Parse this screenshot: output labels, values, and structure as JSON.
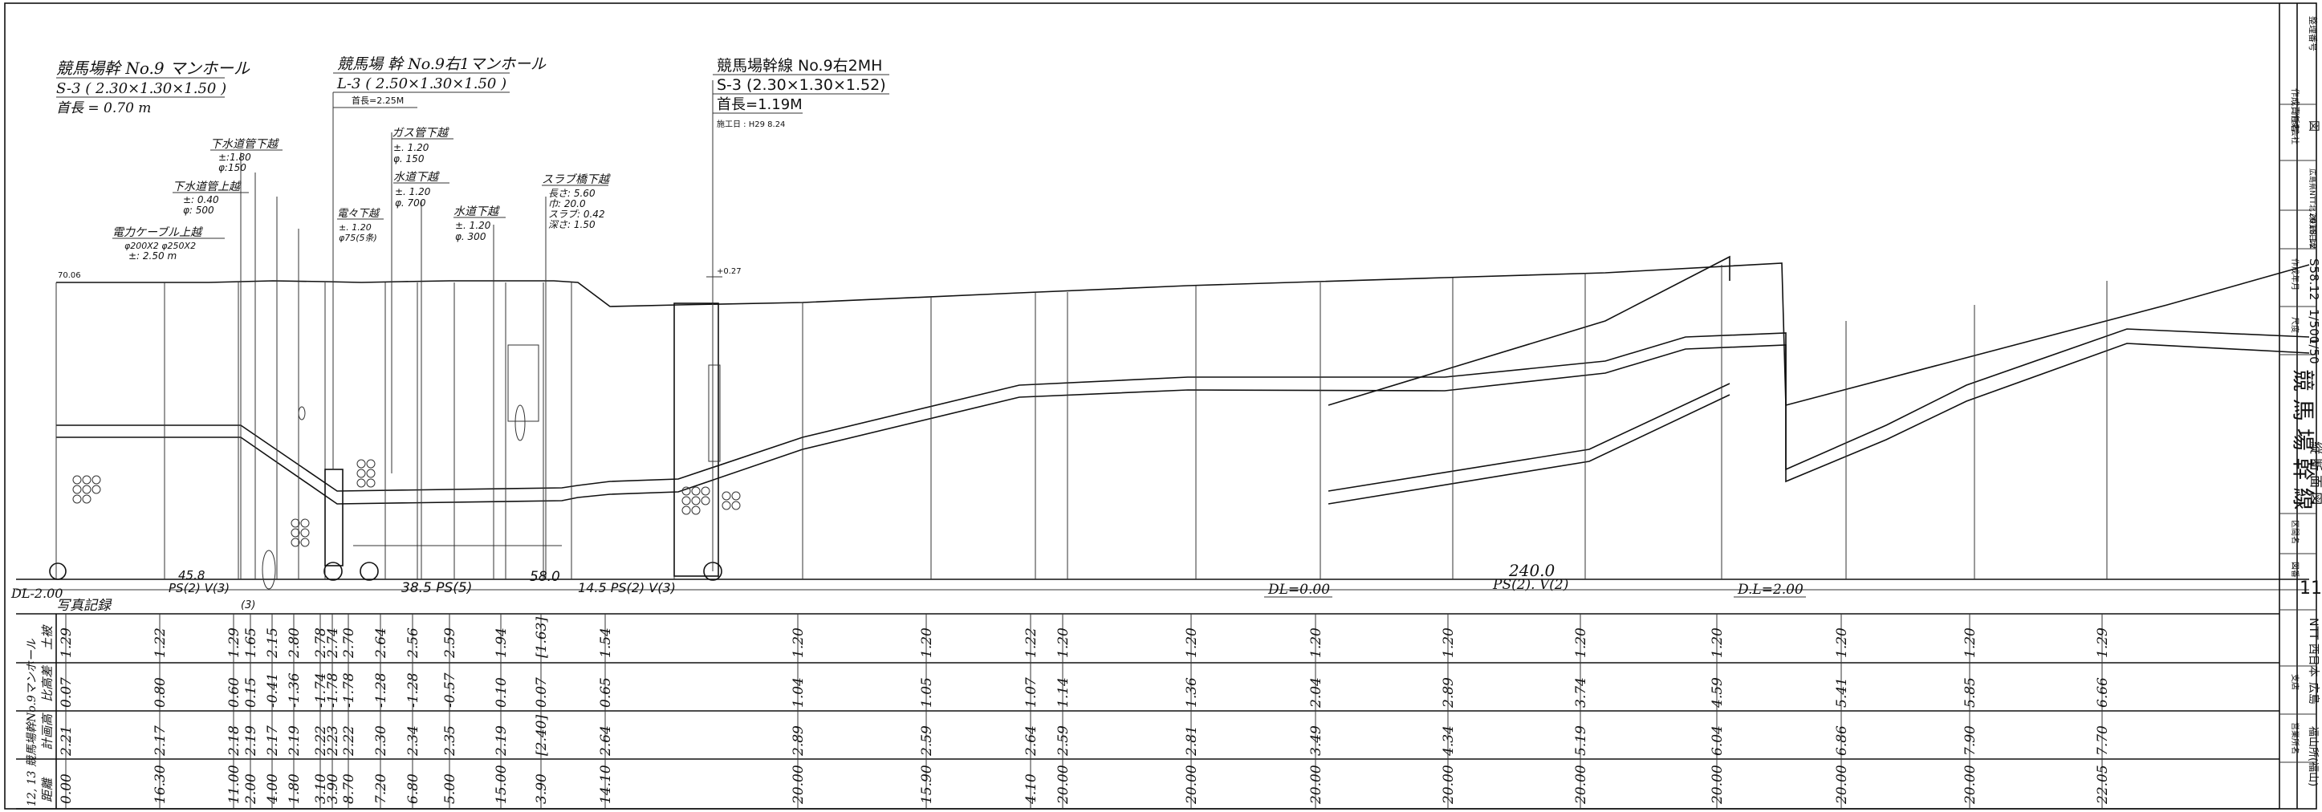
{
  "manholes": [
    {
      "name": "競馬場幹 No.9 マンホール",
      "spec": "S-3 ( 2.30×1.30×1.50 )",
      "neck": "首長 = 0.70 m"
    },
    {
      "name": "競馬場 幹 No.9右1マンホール",
      "spec": "L-3 ( 2.50×1.30×1.50 )",
      "neck": "首長=2.25M"
    },
    {
      "name": "競馬場幹線 No.9右2MH",
      "spec": "S-3 (2.30×1.30×1.52)",
      "neck": "首長=1.19M",
      "date": "施工日 : H29 8.24"
    }
  ],
  "crossings": [
    {
      "title": "下水道管下越",
      "l1": "±:1.80",
      "l2": "φ:150"
    },
    {
      "title": "下水道管上越",
      "l1": "±: 0.40",
      "l2": "φ: 500"
    },
    {
      "title": "電力ケーブル上越",
      "l1": "φ200X2 φ250X2",
      "l2": "±: 2.50 m"
    },
    {
      "title": "電々下越",
      "l1": "±. 1.20",
      "l2": "φ75(5条)"
    },
    {
      "title": "ガス管下越",
      "l1": "±. 1.20",
      "l2": "φ. 150"
    },
    {
      "title": "水道下越",
      "l1": "±. 1.20",
      "l2": "φ. 700"
    },
    {
      "title": "水道下越",
      "l1": "±. 1.20",
      "l2": "φ. 300"
    },
    {
      "title": "スラブ橋下越",
      "l1": "長さ: 5.60",
      "l2": "巾: 20.0",
      "l3": "スラブ: 0.42",
      "l4": "深さ: 1.50"
    }
  ],
  "notes": {
    "elev_left": "70.06",
    "elev_mh": "+0.27",
    "dl_left": "DL-2.00",
    "photo": "写真記録",
    "dl_mid": "DL=0.00",
    "dl_right": "D.L=2.00",
    "span_total": "240.0",
    "span_total_sub": "PS(2). V(2)"
  },
  "spans": [
    {
      "t": "45.8"
    },
    {
      "t": "PS(2) V(3)"
    },
    {
      "t": "(3)"
    },
    {
      "t": "38.5 PS(5)"
    },
    {
      "t": "58.0"
    },
    {
      "t": "14.5 PS(2) V(3)"
    }
  ],
  "table_labels": {
    "r1": "土被",
    "r2": "比高差",
    "r3": "計画高",
    "r4": "距離",
    "start": "12, 13 競馬場幹No.9マンホール"
  },
  "stations": [
    {
      "a": "1.29",
      "b": "0.07",
      "c": "2.21",
      "d": "0.00"
    },
    {
      "a": "1.22",
      "b": "0.80",
      "c": "2.17",
      "d": "16.30"
    },
    {
      "a": "1.29",
      "b": "0.60",
      "c": "2.18",
      "d": "11.00"
    },
    {
      "a": "1.65",
      "b": "0.15",
      "c": "2.19",
      "d": "2.00"
    },
    {
      "a": "2.15",
      "b": "-0.41",
      "c": "2.17",
      "d": "4.00"
    },
    {
      "a": "2.80",
      "b": "-1.36",
      "c": "2.19",
      "d": "1.80"
    },
    {
      "a": "2.78",
      "b": "-1.74",
      "c": "2.22",
      "d": "3.10"
    },
    {
      "a": "2.74",
      "b": "-1.78",
      "c": "2.23",
      "d": "3.90"
    },
    {
      "a": "2.70",
      "b": "-1.78",
      "c": "2.22",
      "d": "8.70"
    },
    {
      "a": "2.64",
      "b": "-1.28",
      "c": "2.30",
      "d": "7.20"
    },
    {
      "a": "2.56",
      "b": "-1.28",
      "c": "2.34",
      "d": "6.80"
    },
    {
      "a": "2.59",
      "b": "-0.57",
      "c": "2.35",
      "d": "5.00"
    },
    {
      "a": "1.94",
      "b": "0.10",
      "c": "2.19",
      "d": "15.00"
    },
    {
      "a": "[1.63]",
      "b": "0.07",
      "c": "[2.40]",
      "d": "3.90"
    },
    {
      "a": "1.54",
      "b": "0.65",
      "c": "2.64",
      "d": "14.10"
    },
    {
      "a": "1.20",
      "b": "1.04",
      "c": "2.89",
      "d": "20.00"
    },
    {
      "a": "1.20",
      "b": "1.05",
      "c": "2.59",
      "d": "15.90"
    },
    {
      "a": "1.22",
      "b": "1.07",
      "c": "2.64",
      "d": "4.10"
    },
    {
      "a": "1.20",
      "b": "1.14",
      "c": "2.59",
      "d": "20.00"
    },
    {
      "a": "1.20",
      "b": "1.36",
      "c": "2.81",
      "d": "20.00"
    },
    {
      "a": "1.20",
      "b": "2.04",
      "c": "3.49",
      "d": "20.00"
    },
    {
      "a": "1.20",
      "b": "2.89",
      "c": "4.34",
      "d": "20.00"
    },
    {
      "a": "1.20",
      "b": "3.74",
      "c": "5.19",
      "d": "20.00"
    },
    {
      "a": "1.20",
      "b": "4.59",
      "c": "6.04",
      "d": "20.00"
    },
    {
      "a": "1.20",
      "b": "5.41",
      "c": "6.86",
      "d": "20.00"
    },
    {
      "a": "1.20",
      "b": "5.85",
      "c": "7.90",
      "d": "20.00"
    },
    {
      "a": "1.29",
      "b": "6.66",
      "c": "7.70",
      "d": "22.05"
    }
  ],
  "title_block": {
    "author_label": "作成責任者",
    "number_label": "整理番号",
    "sheet_no": "図",
    "maker_label": "作成会社",
    "maker": "広島県NTT北 (株)西日本",
    "scale_label": "尺度",
    "scale_h": "1/500",
    "scale_v": "1/50",
    "date_label": "作成年月",
    "date": "S58.12",
    "rev": "2018.12",
    "route_label": "区間名",
    "route": "競 馬 場 幹 線",
    "drawing_name": "縦 断 面 図",
    "sheet_label": "図番",
    "sheet": "11",
    "company": "NTT 西日本",
    "branch_label": "支店",
    "branch": "広島",
    "office_label": "営業所名",
    "office": "福山所(福山)"
  }
}
